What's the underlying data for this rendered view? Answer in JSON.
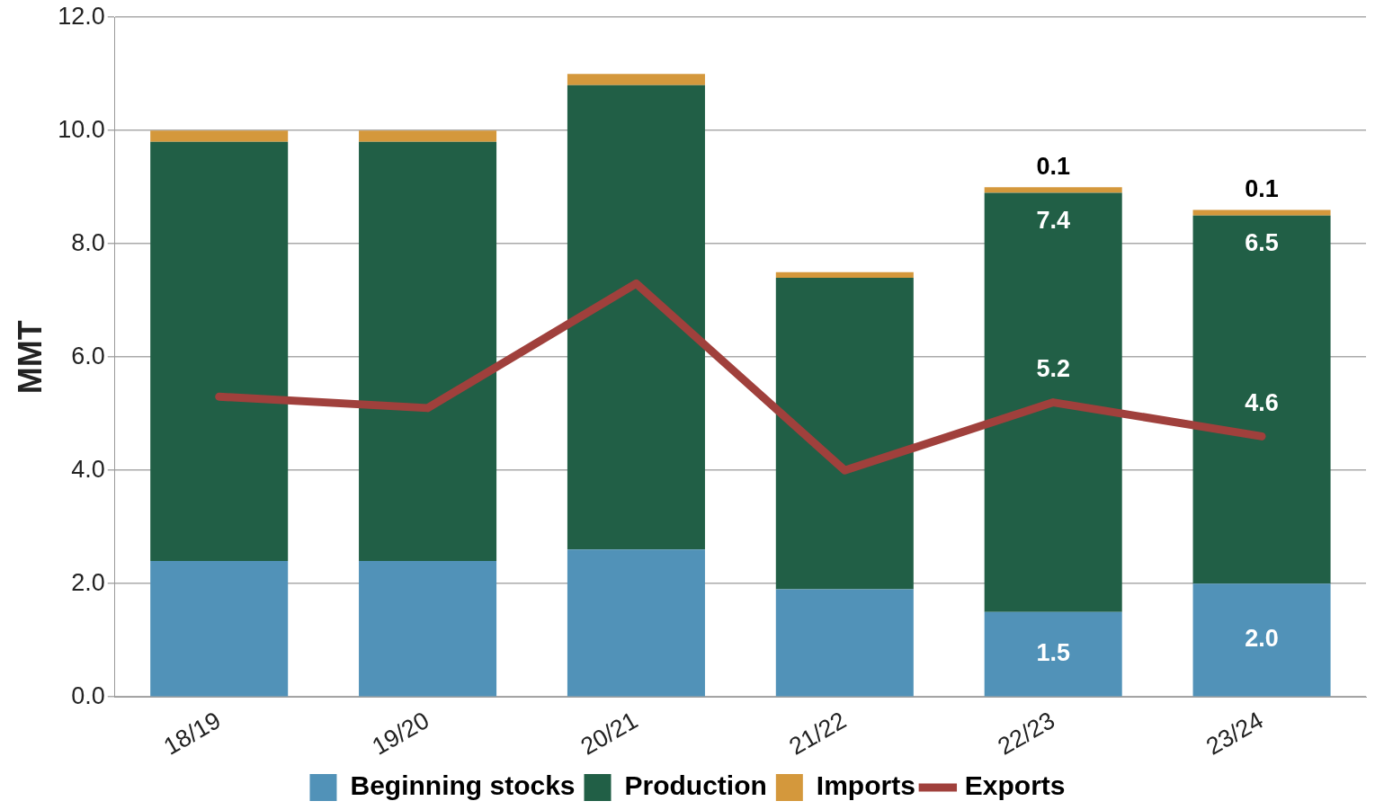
{
  "chart_data": {
    "type": "bar",
    "stacked": true,
    "ylabel": "MMT",
    "categories": [
      "18/19",
      "19/20",
      "20/21",
      "21/22",
      "22/23",
      "23/24"
    ],
    "series": [
      {
        "name": "Beginning stocks",
        "color": "#5192b8",
        "values": [
          2.4,
          2.4,
          2.6,
          1.9,
          1.5,
          2.0
        ],
        "value_labels": [
          null,
          null,
          null,
          null,
          "1.5",
          "2.0"
        ]
      },
      {
        "name": "Production",
        "color": "#215f46",
        "values": [
          7.4,
          7.4,
          8.2,
          5.5,
          7.4,
          6.5
        ],
        "value_labels": [
          null,
          null,
          null,
          null,
          "7.4",
          "6.5"
        ]
      },
      {
        "name": "Imports",
        "color": "#d4983c",
        "values": [
          0.2,
          0.2,
          0.2,
          0.1,
          0.1,
          0.1
        ],
        "value_labels": [
          null,
          null,
          null,
          null,
          "0.1",
          "0.1"
        ]
      },
      {
        "name": "Exports",
        "type": "line",
        "color": "#a0403c",
        "values": [
          5.3,
          5.1,
          7.3,
          4.0,
          5.2,
          4.6
        ],
        "value_labels": [
          null,
          null,
          null,
          null,
          "5.2",
          "4.6"
        ]
      }
    ],
    "ylim": [
      0,
      12
    ],
    "yticks": [
      {
        "value": 0,
        "label": "0.0"
      },
      {
        "value": 2,
        "label": "2.0"
      },
      {
        "value": 4,
        "label": "4.0"
      },
      {
        "value": 6,
        "label": "6.0"
      },
      {
        "value": 8,
        "label": "8.0"
      },
      {
        "value": 10,
        "label": "10.0"
      },
      {
        "value": 12,
        "label": "12.0"
      }
    ],
    "grid": "y",
    "legend": "bottom",
    "marker": "none"
  }
}
